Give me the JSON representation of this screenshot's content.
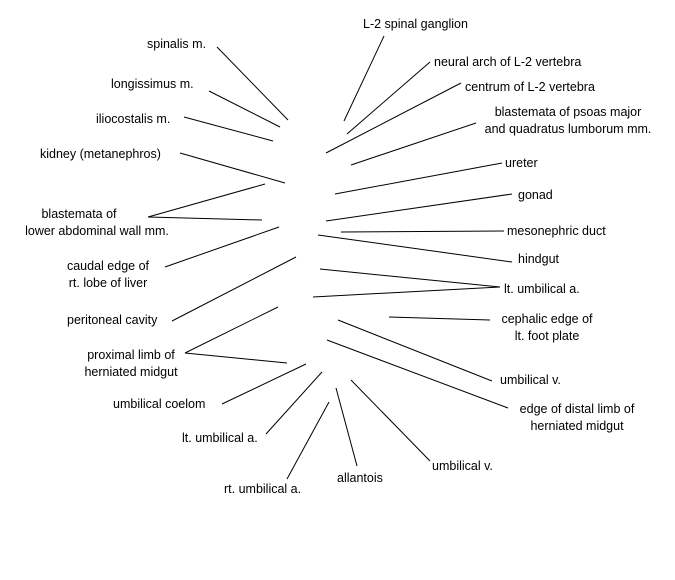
{
  "labels": {
    "spinalis": "spinalis m.",
    "longissimus": "longissimus m.",
    "iliocostalis": "iliocostalis m.",
    "kidney": "kidney (metanephros)",
    "blastemata_abd_1": "blastemata of",
    "blastemata_abd_2": "lower abdominal wall mm.",
    "liver_1": "caudal edge of",
    "liver_2": "rt. lobe of liver",
    "peritoneal": "peritoneal cavity",
    "proximal_1": "proximal limb of",
    "proximal_2": "herniated midgut",
    "coelom": "umbilical coelom",
    "lt_umb_left": "lt. umbilical a.",
    "rt_umb": "rt. umbilical a.",
    "allantois": "allantois",
    "umb_v_bottom": "umbilical v.",
    "ganglion": "L-2 spinal ganglion",
    "neural_arch": "neural arch of L-2 vertebra",
    "centrum": "centrum of L-2 vertebra",
    "psoas_1": "blastemata of psoas major",
    "psoas_2": "and quadratus lumborum mm.",
    "ureter": "ureter",
    "gonad": "gonad",
    "mesonephric": "mesonephric duct",
    "hindgut": "hindgut",
    "lt_umb_right": "lt. umbilical a.",
    "foot_1": "cephalic edge of",
    "foot_2": "lt. foot plate",
    "umb_v_right": "umbilical v.",
    "distal_1": "edge of distal limb of",
    "distal_2": "herniated midgut"
  }
}
